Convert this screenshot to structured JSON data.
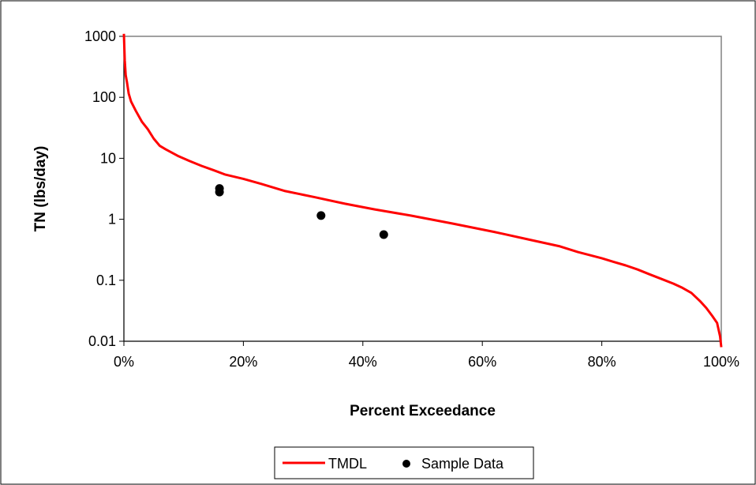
{
  "chart_data": {
    "type": "line",
    "title": "",
    "xlabel": "Percent Exceedance",
    "ylabel": "TN (lbs/day)",
    "x_scale": "linear",
    "y_scale": "log",
    "xlim": [
      0,
      100
    ],
    "ylim": [
      0.01,
      1000
    ],
    "x_ticks": [
      0,
      20,
      40,
      60,
      80,
      100
    ],
    "x_tick_labels": [
      "0%",
      "20%",
      "40%",
      "60%",
      "80%",
      "100%"
    ],
    "y_ticks": [
      0.01,
      0.1,
      1,
      10,
      100,
      1000
    ],
    "y_tick_labels": [
      "0.01",
      "0.1",
      "1",
      "10",
      "100",
      "1000"
    ],
    "grid": false,
    "legend_position": "bottom",
    "series": [
      {
        "name": "TMDL",
        "kind": "line",
        "color": "#ff0000",
        "x": [
          0,
          0.15,
          0.3,
          0.5,
          0.8,
          1.2,
          2,
          3,
          4,
          5,
          6,
          7,
          9,
          11,
          13,
          15,
          17,
          20,
          23,
          27,
          32,
          37,
          42,
          48,
          55,
          62,
          68,
          73,
          76,
          80,
          82,
          84,
          86,
          88,
          90,
          92,
          93.5,
          95,
          96.5,
          97.5,
          98.5,
          99.3,
          99.8,
          100
        ],
        "y": [
          1100,
          400,
          230,
          180,
          115,
          85,
          60,
          40,
          30,
          21,
          16,
          14,
          11,
          9,
          7.5,
          6.4,
          5.4,
          4.6,
          3.8,
          2.9,
          2.3,
          1.8,
          1.45,
          1.15,
          0.85,
          0.62,
          0.46,
          0.36,
          0.29,
          0.23,
          0.2,
          0.175,
          0.15,
          0.125,
          0.105,
          0.088,
          0.075,
          0.062,
          0.045,
          0.035,
          0.026,
          0.02,
          0.012,
          0.008
        ]
      },
      {
        "name": "Sample Data",
        "kind": "scatter",
        "color": "#000000",
        "x": [
          16,
          16,
          33,
          43.5
        ],
        "y": [
          3.2,
          2.8,
          1.15,
          0.56
        ]
      }
    ]
  }
}
